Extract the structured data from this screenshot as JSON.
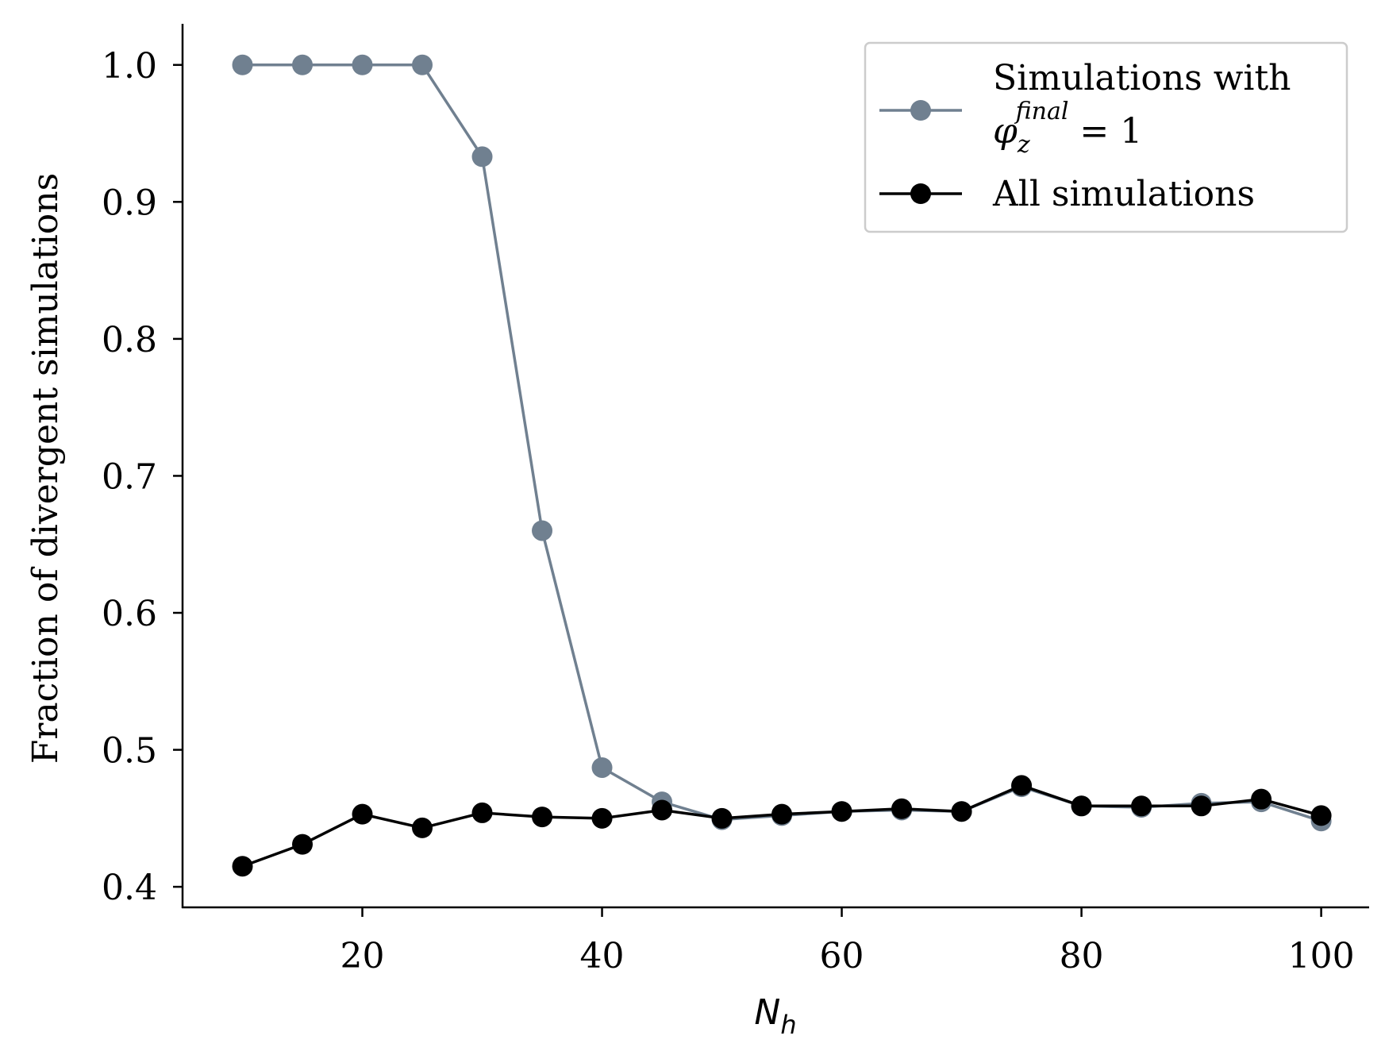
{
  "chart_data": {
    "type": "line",
    "title": "",
    "xlabel": {
      "base": "N",
      "sub": "h"
    },
    "ylabel": "Fraction of divergent simulations",
    "xlim": [
      5,
      104
    ],
    "ylim": [
      0.385,
      1.03
    ],
    "x_ticks": [
      20,
      40,
      60,
      80,
      100
    ],
    "y_ticks": [
      0.4,
      0.5,
      0.6,
      0.7,
      0.8,
      0.9,
      1.0
    ],
    "x_tick_labels": [
      "20",
      "40",
      "60",
      "80",
      "100"
    ],
    "y_tick_labels": [
      "0.4",
      "0.5",
      "0.6",
      "0.7",
      "0.8",
      "0.9",
      "1.0"
    ],
    "grid": false,
    "legend_position": "top-right",
    "x": [
      10,
      15,
      20,
      25,
      30,
      35,
      40,
      45,
      50,
      55,
      60,
      65,
      70,
      75,
      80,
      85,
      90,
      95,
      100
    ],
    "series": [
      {
        "name": "Simulations with φ_z^final = 1",
        "legend_line1": "Simulations with",
        "legend_phi": "φ",
        "legend_sub": "z",
        "legend_sup": "final",
        "legend_eq": " = 1",
        "color": "#708090",
        "values": [
          1.0,
          1.0,
          1.0,
          1.0,
          0.933,
          0.66,
          0.487,
          0.462,
          0.449,
          0.452,
          0.455,
          0.456,
          0.455,
          0.473,
          0.459,
          0.458,
          0.461,
          0.462,
          0.448
        ]
      },
      {
        "name": "All simulations",
        "legend_line1": "All simulations",
        "color": "#000000",
        "values": [
          0.415,
          0.431,
          0.453,
          0.443,
          0.454,
          0.451,
          0.45,
          0.456,
          0.45,
          0.453,
          0.455,
          0.457,
          0.455,
          0.474,
          0.459,
          0.459,
          0.459,
          0.464,
          0.452
        ]
      }
    ]
  }
}
